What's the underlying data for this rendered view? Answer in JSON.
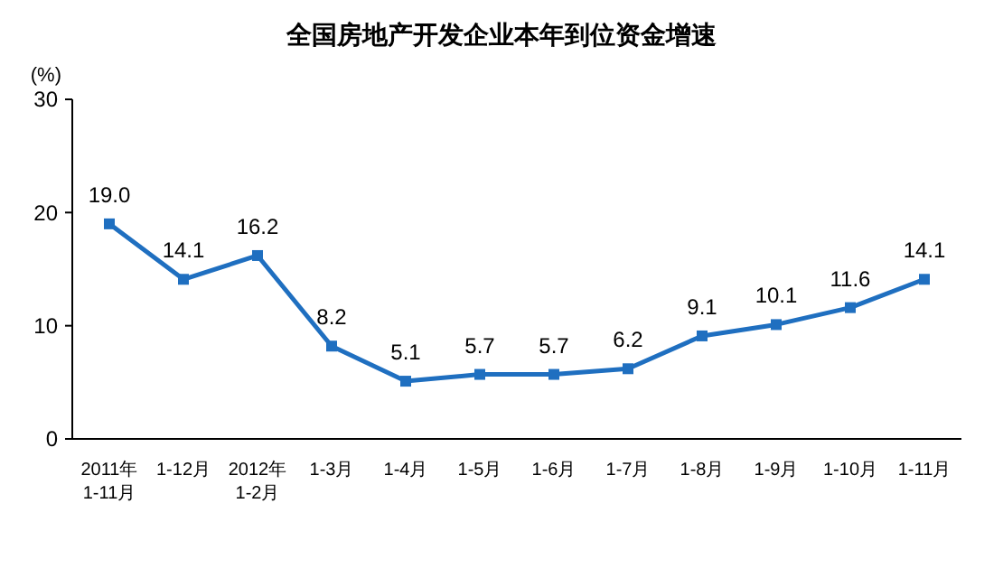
{
  "chart_data": {
    "type": "line",
    "title": "全国房地产开发企业本年到位资金增速",
    "ylabel": "(%)",
    "categories": [
      "2011年\n1-11月",
      "1-12月",
      "2012年\n1-2月",
      "1-3月",
      "1-4月",
      "1-5月",
      "1-6月",
      "1-7月",
      "1-8月",
      "1-9月",
      "1-10月",
      "1-11月"
    ],
    "series": [
      {
        "color": "#1f6fc0",
        "values": [
          19.0,
          14.1,
          16.2,
          8.2,
          5.1,
          5.7,
          5.7,
          6.2,
          9.1,
          10.1,
          11.6,
          14.1
        ]
      }
    ],
    "value_labels": [
      "19.0",
      "14.1",
      "16.2",
      "8.2",
      "5.1",
      "5.7",
      "5.7",
      "6.2",
      "9.1",
      "10.1",
      "11.6",
      "14.1"
    ],
    "ylim": [
      0,
      30
    ],
    "yticks": [
      0,
      10,
      20,
      30
    ],
    "grid": false,
    "marker": "square",
    "line_style": "solid"
  }
}
